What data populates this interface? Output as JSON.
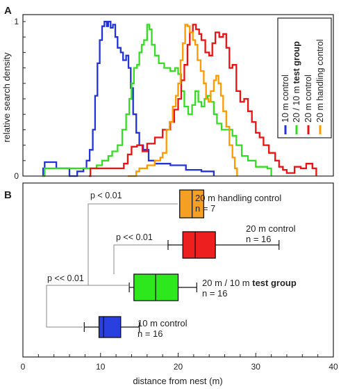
{
  "chart_data": [
    {
      "panel": "A",
      "type": "line",
      "ylabel": "relative search density",
      "xlim": [
        0,
        40
      ],
      "ylim": [
        0,
        1.0
      ],
      "yticks": [
        "0",
        "1"
      ],
      "legend": {
        "placement": "top-right",
        "orientation": "rotated-vertical",
        "entries": [
          {
            "text": "10 m control",
            "bold": ""
          },
          {
            "text": "20 / 10 m ",
            "bold": "test group"
          },
          {
            "text": "20 m control",
            "bold": ""
          },
          {
            "text": "20 m handling control",
            "bold": ""
          }
        ]
      },
      "series": [
        {
          "color": "#2233dd",
          "points": [
            [
              2.5,
              0
            ],
            [
              2.6,
              0.05
            ],
            [
              2.8,
              0.09
            ],
            [
              4.0,
              0.09
            ],
            [
              4.3,
              0.05
            ],
            [
              5.0,
              0.05
            ],
            [
              6.0,
              0
            ],
            [
              7.0,
              0.03
            ],
            [
              7.8,
              0.05
            ],
            [
              8.2,
              0.1
            ],
            [
              8.6,
              0.17
            ],
            [
              9.0,
              0.3
            ],
            [
              9.3,
              0.52
            ],
            [
              9.6,
              0.73
            ],
            [
              9.9,
              0.88
            ],
            [
              10.2,
              0.97
            ],
            [
              10.5,
              1.0
            ],
            [
              10.8,
              0.97
            ],
            [
              11.0,
              1.0
            ],
            [
              11.3,
              0.96
            ],
            [
              11.6,
              0.98
            ],
            [
              11.9,
              0.9
            ],
            [
              12.2,
              0.83
            ],
            [
              12.6,
              0.8
            ],
            [
              12.9,
              0.75
            ],
            [
              13.3,
              0.78
            ],
            [
              13.6,
              0.7
            ],
            [
              13.9,
              0.57
            ],
            [
              14.2,
              0.4
            ],
            [
              14.6,
              0.28
            ],
            [
              15.0,
              0.2
            ],
            [
              15.5,
              0.17
            ],
            [
              16.2,
              0.1
            ],
            [
              17.0,
              0.08
            ],
            [
              19.0,
              0.07
            ],
            [
              21.0,
              0.04
            ],
            [
              23.0,
              0.03
            ],
            [
              24.5,
              0.03
            ],
            [
              24.6,
              0
            ]
          ]
        },
        {
          "color": "#33dd22",
          "points": [
            [
              2.5,
              0
            ],
            [
              2.8,
              0.05
            ],
            [
              4.0,
              0.05
            ],
            [
              6.0,
              0.05
            ],
            [
              8.0,
              0.05
            ],
            [
              9.0,
              0.05
            ],
            [
              9.5,
              0.07
            ],
            [
              10.2,
              0.1
            ],
            [
              11.0,
              0.13
            ],
            [
              11.5,
              0.16
            ],
            [
              12.2,
              0.2
            ],
            [
              12.8,
              0.3
            ],
            [
              13.3,
              0.4
            ],
            [
              13.7,
              0.5
            ],
            [
              14.0,
              0.6
            ],
            [
              14.3,
              0.7
            ],
            [
              14.7,
              0.72
            ],
            [
              15.0,
              0.8
            ],
            [
              15.3,
              0.85
            ],
            [
              15.6,
              0.88
            ],
            [
              16.0,
              0.98
            ],
            [
              16.3,
              0.95
            ],
            [
              16.6,
              0.85
            ],
            [
              17.0,
              0.78
            ],
            [
              17.5,
              0.73
            ],
            [
              18.2,
              0.7
            ],
            [
              19.0,
              0.68
            ],
            [
              19.6,
              0.7
            ],
            [
              20.0,
              0.66
            ],
            [
              20.4,
              0.55
            ],
            [
              20.8,
              0.45
            ],
            [
              21.3,
              0.4
            ],
            [
              21.8,
              0.46
            ],
            [
              22.2,
              0.55
            ],
            [
              22.6,
              0.48
            ],
            [
              23.0,
              0.45
            ],
            [
              23.4,
              0.5
            ],
            [
              23.8,
              0.52
            ],
            [
              24.2,
              0.48
            ],
            [
              24.6,
              0.4
            ],
            [
              25.0,
              0.34
            ],
            [
              25.6,
              0.3
            ],
            [
              26.3,
              0.3
            ],
            [
              27.0,
              0.26
            ],
            [
              27.5,
              0.2
            ],
            [
              28.2,
              0.13
            ],
            [
              29.0,
              0.1
            ],
            [
              30.0,
              0.06
            ],
            [
              31.5,
              0.05
            ],
            [
              32.0,
              0
            ]
          ]
        },
        {
          "color": "#ee1111",
          "points": [
            [
              8.5,
              0
            ],
            [
              8.7,
              0.05
            ],
            [
              11.0,
              0.05
            ],
            [
              13.0,
              0.08
            ],
            [
              13.5,
              0.14
            ],
            [
              14.0,
              0.19
            ],
            [
              14.7,
              0.2
            ],
            [
              15.4,
              0.16
            ],
            [
              16.0,
              0.21
            ],
            [
              17.0,
              0.25
            ],
            [
              18.0,
              0.3
            ],
            [
              19.0,
              0.35
            ],
            [
              19.5,
              0.43
            ],
            [
              20.0,
              0.5
            ],
            [
              20.4,
              0.62
            ],
            [
              20.8,
              0.72
            ],
            [
              21.2,
              0.85
            ],
            [
              21.5,
              0.93
            ],
            [
              21.9,
              0.98
            ],
            [
              22.3,
              0.95
            ],
            [
              22.7,
              0.92
            ],
            [
              23.0,
              0.88
            ],
            [
              23.5,
              0.8
            ],
            [
              24.0,
              0.78
            ],
            [
              24.4,
              0.86
            ],
            [
              24.8,
              0.93
            ],
            [
              25.3,
              0.9
            ],
            [
              25.8,
              0.92
            ],
            [
              26.2,
              0.83
            ],
            [
              26.6,
              0.7
            ],
            [
              27.0,
              0.72
            ],
            [
              27.5,
              0.55
            ],
            [
              28.0,
              0.48
            ],
            [
              28.5,
              0.5
            ],
            [
              29.0,
              0.42
            ],
            [
              29.5,
              0.35
            ],
            [
              30.0,
              0.28
            ],
            [
              30.5,
              0.25
            ],
            [
              31.0,
              0.2
            ],
            [
              31.7,
              0.15
            ],
            [
              32.5,
              0.1
            ],
            [
              33.0,
              0.06
            ],
            [
              33.5,
              0.04
            ],
            [
              34.0,
              0.02
            ],
            [
              35.0,
              0.06
            ],
            [
              35.8,
              0.05
            ],
            [
              36.5,
              0.08
            ],
            [
              37.3,
              0.05
            ],
            [
              37.8,
              0
            ]
          ]
        },
        {
          "color": "#ff9900",
          "points": [
            [
              13.5,
              0
            ],
            [
              14.3,
              0
            ],
            [
              14.6,
              0.03
            ],
            [
              15.0,
              0.05
            ],
            [
              16.0,
              0.07
            ],
            [
              17.0,
              0.1
            ],
            [
              17.7,
              0.12
            ],
            [
              18.0,
              0.15
            ],
            [
              18.5,
              0.3
            ],
            [
              18.9,
              0.35
            ],
            [
              19.3,
              0.45
            ],
            [
              19.7,
              0.52
            ],
            [
              20.0,
              0.6
            ],
            [
              20.3,
              0.75
            ],
            [
              20.6,
              0.86
            ],
            [
              20.9,
              0.98
            ],
            [
              21.2,
              0.97
            ],
            [
              21.5,
              0.93
            ],
            [
              21.9,
              0.88
            ],
            [
              22.2,
              0.85
            ],
            [
              22.5,
              0.75
            ],
            [
              22.9,
              0.68
            ],
            [
              23.3,
              0.6
            ],
            [
              23.6,
              0.5
            ],
            [
              23.9,
              0.48
            ],
            [
              24.2,
              0.55
            ],
            [
              24.6,
              0.62
            ],
            [
              24.9,
              0.65
            ],
            [
              25.2,
              0.6
            ],
            [
              25.5,
              0.52
            ],
            [
              25.8,
              0.42
            ],
            [
              26.2,
              0.32
            ],
            [
              26.6,
              0.2
            ],
            [
              27.0,
              0.12
            ],
            [
              27.3,
              0.05
            ],
            [
              27.6,
              0
            ]
          ]
        }
      ]
    },
    {
      "panel": "B",
      "type": "box",
      "xlabel": "distance from nest (m)",
      "xlim": [
        0,
        40
      ],
      "xticks": [
        0,
        10,
        20,
        30,
        40
      ],
      "groups": [
        {
          "label": "20 m handling control",
          "n": "n = 7",
          "color": "#f5a023",
          "min": 20.2,
          "q1": 20.2,
          "median": 21.8,
          "q3": 23.3,
          "max": 23.3
        },
        {
          "label": "20 m control",
          "n": "n = 16",
          "color": "#ee1f1f",
          "min": 18.7,
          "q1": 20.6,
          "median": 22.2,
          "q3": 24.8,
          "max": 33.0
        },
        {
          "label": "20 m / 10 m ",
          "label_bold": "test group",
          "n": "n = 16",
          "color": "#2ee81e",
          "min": 13.7,
          "q1": 14.3,
          "median": 17.1,
          "q3": 20.0,
          "max": 22.4
        },
        {
          "label": "10 m control",
          "n": "n = 16",
          "color": "#2a3fe0",
          "min": 7.9,
          "q1": 9.8,
          "median": 10.4,
          "q3": 12.6,
          "max": 15.0
        }
      ],
      "comparisons": [
        {
          "text": "p < 0.01"
        },
        {
          "text": "p << 0.01"
        },
        {
          "text": "p << 0.01"
        }
      ]
    }
  ]
}
